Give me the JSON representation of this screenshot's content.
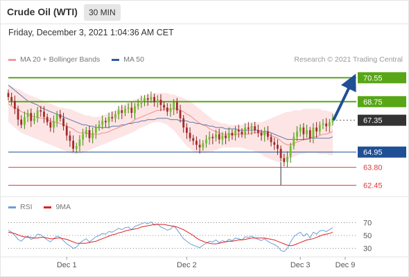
{
  "header": {
    "title": "Crude Oil (WTI)",
    "timeframe": "30 MIN"
  },
  "datetime": "Friday, December 3, 2021 1:04:36 AM CET",
  "credit": "Research © 2021 Trading Central",
  "legend": {
    "price": [
      {
        "label": "MA 20 + Bollinger Bands",
        "color": "#f29a9a"
      },
      {
        "label": "MA 50",
        "color": "#2f5d9c"
      }
    ],
    "rsi": [
      {
        "label": "RSI",
        "color": "#6a9fd8"
      },
      {
        "label": "9MA",
        "color": "#e02020"
      }
    ]
  },
  "chart_data": [
    {
      "type": "candlestick",
      "title": "Crude Oil (WTI)",
      "ylim": [
        61.8,
        71.4
      ],
      "x_ticks": [
        {
          "label": "Dec 1",
          "index": 18
        },
        {
          "label": "Dec 2",
          "index": 55
        },
        {
          "label": "Dec 3",
          "index": 90
        },
        {
          "label": "Dec 9",
          "index": 110
        }
      ],
      "last_price": 67.35,
      "projection": {
        "from": 67.35,
        "to": 70.55
      },
      "levels": [
        {
          "value": 70.55,
          "label": "70.55",
          "type": "resistance",
          "color": "#58a618"
        },
        {
          "value": 68.75,
          "label": "68.75",
          "type": "resistance",
          "color": "#58a618"
        },
        {
          "value": 67.35,
          "label": "67.35",
          "type": "last",
          "color": "#333333"
        },
        {
          "value": 64.95,
          "label": "64.95",
          "type": "pivot",
          "color": "#1f4f95"
        },
        {
          "value": 63.8,
          "label": "63.80",
          "type": "support",
          "color": "#e03a3a"
        },
        {
          "value": 62.45,
          "label": "62.45",
          "type": "support",
          "color": "#e03a3a"
        }
      ],
      "close": [
        69.1,
        68.8,
        68.2,
        67.4,
        67.0,
        67.6,
        67.9,
        67.3,
        67.5,
        68.1,
        68.0,
        67.6,
        67.2,
        66.8,
        67.3,
        67.8,
        67.5,
        66.9,
        66.2,
        65.8,
        65.2,
        65.4,
        65.9,
        66.3,
        66.6,
        66.0,
        66.4,
        66.8,
        67.0,
        67.3,
        67.2,
        67.6,
        67.5,
        67.8,
        68.1,
        67.9,
        68.2,
        68.3,
        67.9,
        68.4,
        68.6,
        68.8,
        69.0,
        68.9,
        69.1,
        68.7,
        68.9,
        68.5,
        68.3,
        68.0,
        68.2,
        68.7,
        68.1,
        67.5,
        66.8,
        66.4,
        66.0,
        65.8,
        65.5,
        65.3,
        65.6,
        65.9,
        66.1,
        66.0,
        66.3,
        65.9,
        66.2,
        66.0,
        66.4,
        66.2,
        66.6,
        66.5,
        66.3,
        66.8,
        66.7,
        66.9,
        66.6,
        66.4,
        66.2,
        66.5,
        66.1,
        65.7,
        65.5,
        65.2,
        64.5,
        64.2,
        64.6,
        65.4,
        66.1,
        66.5,
        66.8,
        66.3,
        66.6,
        66.0,
        66.8,
        66.5,
        67.0,
        67.1,
        66.9,
        67.2,
        67.5
      ],
      "ma20": [
        68.6,
        68.4,
        68.3,
        68.2,
        68.0,
        67.9,
        67.8,
        67.7,
        67.6,
        67.6,
        67.5,
        67.5,
        67.4,
        67.3,
        67.2,
        67.2,
        67.1,
        67.0,
        66.9,
        66.8,
        66.7,
        66.5,
        66.4,
        66.4,
        66.4,
        66.3,
        66.3,
        66.3,
        66.3,
        66.4,
        66.4,
        66.5,
        66.6,
        66.7,
        66.8,
        66.9,
        67.0,
        67.1,
        67.2,
        67.4,
        67.5,
        67.6,
        67.7,
        67.8,
        67.9,
        68.0,
        68.1,
        68.1,
        68.2,
        68.2,
        68.2,
        68.2,
        68.2,
        68.1,
        68.0,
        67.8,
        67.7,
        67.5,
        67.3,
        67.1,
        67.0,
        66.9,
        66.7,
        66.6,
        66.5,
        66.4,
        66.3,
        66.3,
        66.3,
        66.3,
        66.3,
        66.3,
        66.3,
        66.3,
        66.3,
        66.4,
        66.4,
        66.4,
        66.4,
        66.4,
        66.3,
        66.2,
        66.1,
        66.0,
        65.8,
        65.6,
        65.5,
        65.5,
        65.6,
        65.7,
        65.8,
        65.9,
        66.0,
        66.0,
        66.1,
        66.1,
        66.2,
        66.3,
        66.3,
        66.4,
        66.5
      ],
      "bb_upper": [
        70.0,
        69.9,
        69.8,
        69.7,
        69.6,
        69.4,
        69.3,
        69.2,
        69.1,
        69.0,
        68.9,
        68.8,
        68.7,
        68.6,
        68.5,
        68.4,
        68.3,
        68.3,
        68.2,
        68.2,
        68.1,
        68.0,
        67.9,
        67.8,
        67.7,
        67.7,
        67.6,
        67.6,
        67.6,
        67.7,
        67.8,
        67.9,
        68.0,
        68.1,
        68.3,
        68.4,
        68.6,
        68.7,
        68.8,
        68.9,
        69.0,
        69.1,
        69.2,
        69.3,
        69.3,
        69.4,
        69.4,
        69.4,
        69.4,
        69.4,
        69.3,
        69.3,
        69.2,
        69.1,
        69.0,
        68.9,
        68.8,
        68.6,
        68.4,
        68.2,
        68.0,
        67.8,
        67.6,
        67.4,
        67.3,
        67.2,
        67.1,
        67.1,
        67.0,
        67.0,
        67.0,
        67.0,
        67.0,
        67.1,
        67.1,
        67.2,
        67.2,
        67.2,
        67.2,
        67.3,
        67.4,
        67.5,
        67.6,
        67.7,
        67.8,
        67.9,
        68.0,
        68.0,
        68.1,
        68.1,
        68.1,
        68.2,
        68.2,
        68.2,
        68.2,
        68.2,
        68.2,
        68.1,
        68.1,
        68.0,
        68.0
      ],
      "bb_lower": [
        67.2,
        67.0,
        66.8,
        66.6,
        66.4,
        66.3,
        66.2,
        66.1,
        66.0,
        65.9,
        65.8,
        65.7,
        65.6,
        65.5,
        65.4,
        65.3,
        65.2,
        65.1,
        65.0,
        64.9,
        64.8,
        64.8,
        64.8,
        64.9,
        65.0,
        65.1,
        65.2,
        65.3,
        65.4,
        65.5,
        65.6,
        65.7,
        65.8,
        65.9,
        66.0,
        66.1,
        66.2,
        66.3,
        66.4,
        66.5,
        66.7,
        66.8,
        66.9,
        67.0,
        67.1,
        67.2,
        67.2,
        67.2,
        67.1,
        67.0,
        66.8,
        66.6,
        66.3,
        66.0,
        65.7,
        65.4,
        65.2,
        65.0,
        64.9,
        64.9,
        64.9,
        64.9,
        65.0,
        65.0,
        65.1,
        65.2,
        65.3,
        65.3,
        65.3,
        65.3,
        65.3,
        65.3,
        65.3,
        65.2,
        65.1,
        65.1,
        65.0,
        64.9,
        64.8,
        64.6,
        64.5,
        64.4,
        64.3,
        64.2,
        64.2,
        64.3,
        64.4,
        64.5,
        64.6,
        64.7,
        64.8,
        64.8,
        64.9,
        64.9,
        64.9,
        64.9,
        64.8,
        64.8,
        64.8,
        64.7,
        64.7
      ],
      "ma50": [
        70.0,
        69.8,
        69.6,
        69.4,
        69.2,
        69.0,
        68.8,
        68.7,
        68.6,
        68.5,
        68.3,
        68.2,
        68.1,
        68.0,
        67.9,
        67.8,
        67.7,
        67.6,
        67.5,
        67.4,
        67.3,
        67.2,
        67.1,
        67.0,
        67.0,
        66.9,
        66.9,
        66.8,
        66.8,
        66.8,
        66.8,
        66.8,
        66.9,
        66.9,
        66.9,
        67.0,
        67.0,
        67.1,
        67.1,
        67.2,
        67.2,
        67.3,
        67.3,
        67.4,
        67.4,
        67.4,
        67.5,
        67.5,
        67.5,
        67.5,
        67.4,
        67.4,
        67.4,
        67.3,
        67.3,
        67.3,
        67.2,
        67.2,
        67.1,
        67.1,
        67.0,
        67.0,
        66.9,
        66.9,
        66.8,
        66.8,
        66.8,
        66.7,
        66.7,
        66.7,
        66.7,
        66.6,
        66.6,
        66.6,
        66.6,
        66.6,
        66.6,
        66.6,
        66.5,
        66.5,
        66.5,
        66.4,
        66.3,
        66.2,
        66.1,
        66.0,
        65.9,
        65.9,
        65.9,
        65.9,
        65.9,
        65.9,
        65.9,
        66.0,
        66.0,
        66.0,
        66.0,
        66.0,
        66.0,
        66.0,
        66.1
      ]
    },
    {
      "type": "line",
      "title": "RSI",
      "ylim": [
        20,
        80
      ],
      "y_ticks": [
        70,
        50,
        30
      ],
      "series": [
        {
          "name": "RSI",
          "color": "#6a9fd8",
          "values": [
            58,
            55,
            50,
            44,
            41,
            46,
            49,
            44,
            46,
            52,
            51,
            47,
            43,
            40,
            45,
            49,
            47,
            42,
            37,
            34,
            30,
            32,
            38,
            42,
            45,
            40,
            44,
            48,
            50,
            53,
            52,
            56,
            55,
            58,
            61,
            59,
            62,
            63,
            59,
            64,
            66,
            68,
            70,
            68,
            71,
            66,
            68,
            63,
            61,
            58,
            60,
            65,
            59,
            52,
            45,
            41,
            37,
            35,
            33,
            31,
            35,
            38,
            41,
            40,
            43,
            39,
            42,
            40,
            44,
            42,
            46,
            45,
            43,
            48,
            47,
            49,
            46,
            44,
            42,
            45,
            41,
            38,
            36,
            33,
            27,
            25,
            30,
            40,
            48,
            52,
            55,
            49,
            53,
            46,
            55,
            52,
            57,
            58,
            56,
            59,
            62
          ]
        },
        {
          "name": "9MA",
          "color": "#e02020",
          "values": [
            55,
            54,
            53,
            51,
            49,
            48,
            47,
            47,
            46,
            46,
            47,
            47,
            46,
            45,
            45,
            46,
            46,
            45,
            44,
            42,
            40,
            38,
            38,
            38,
            38,
            39,
            40,
            41,
            43,
            45,
            47,
            49,
            51,
            52,
            54,
            55,
            57,
            58,
            59,
            60,
            61,
            63,
            64,
            65,
            66,
            67,
            67,
            67,
            67,
            66,
            65,
            64,
            63,
            61,
            59,
            56,
            53,
            50,
            46,
            43,
            41,
            39,
            38,
            37,
            37,
            38,
            39,
            40,
            41,
            41,
            42,
            43,
            43,
            44,
            45,
            46,
            46,
            46,
            46,
            46,
            45,
            44,
            43,
            41,
            39,
            37,
            35,
            34,
            35,
            37,
            39,
            41,
            43,
            44,
            45,
            47,
            49,
            51,
            52,
            53,
            55
          ]
        }
      ]
    }
  ]
}
